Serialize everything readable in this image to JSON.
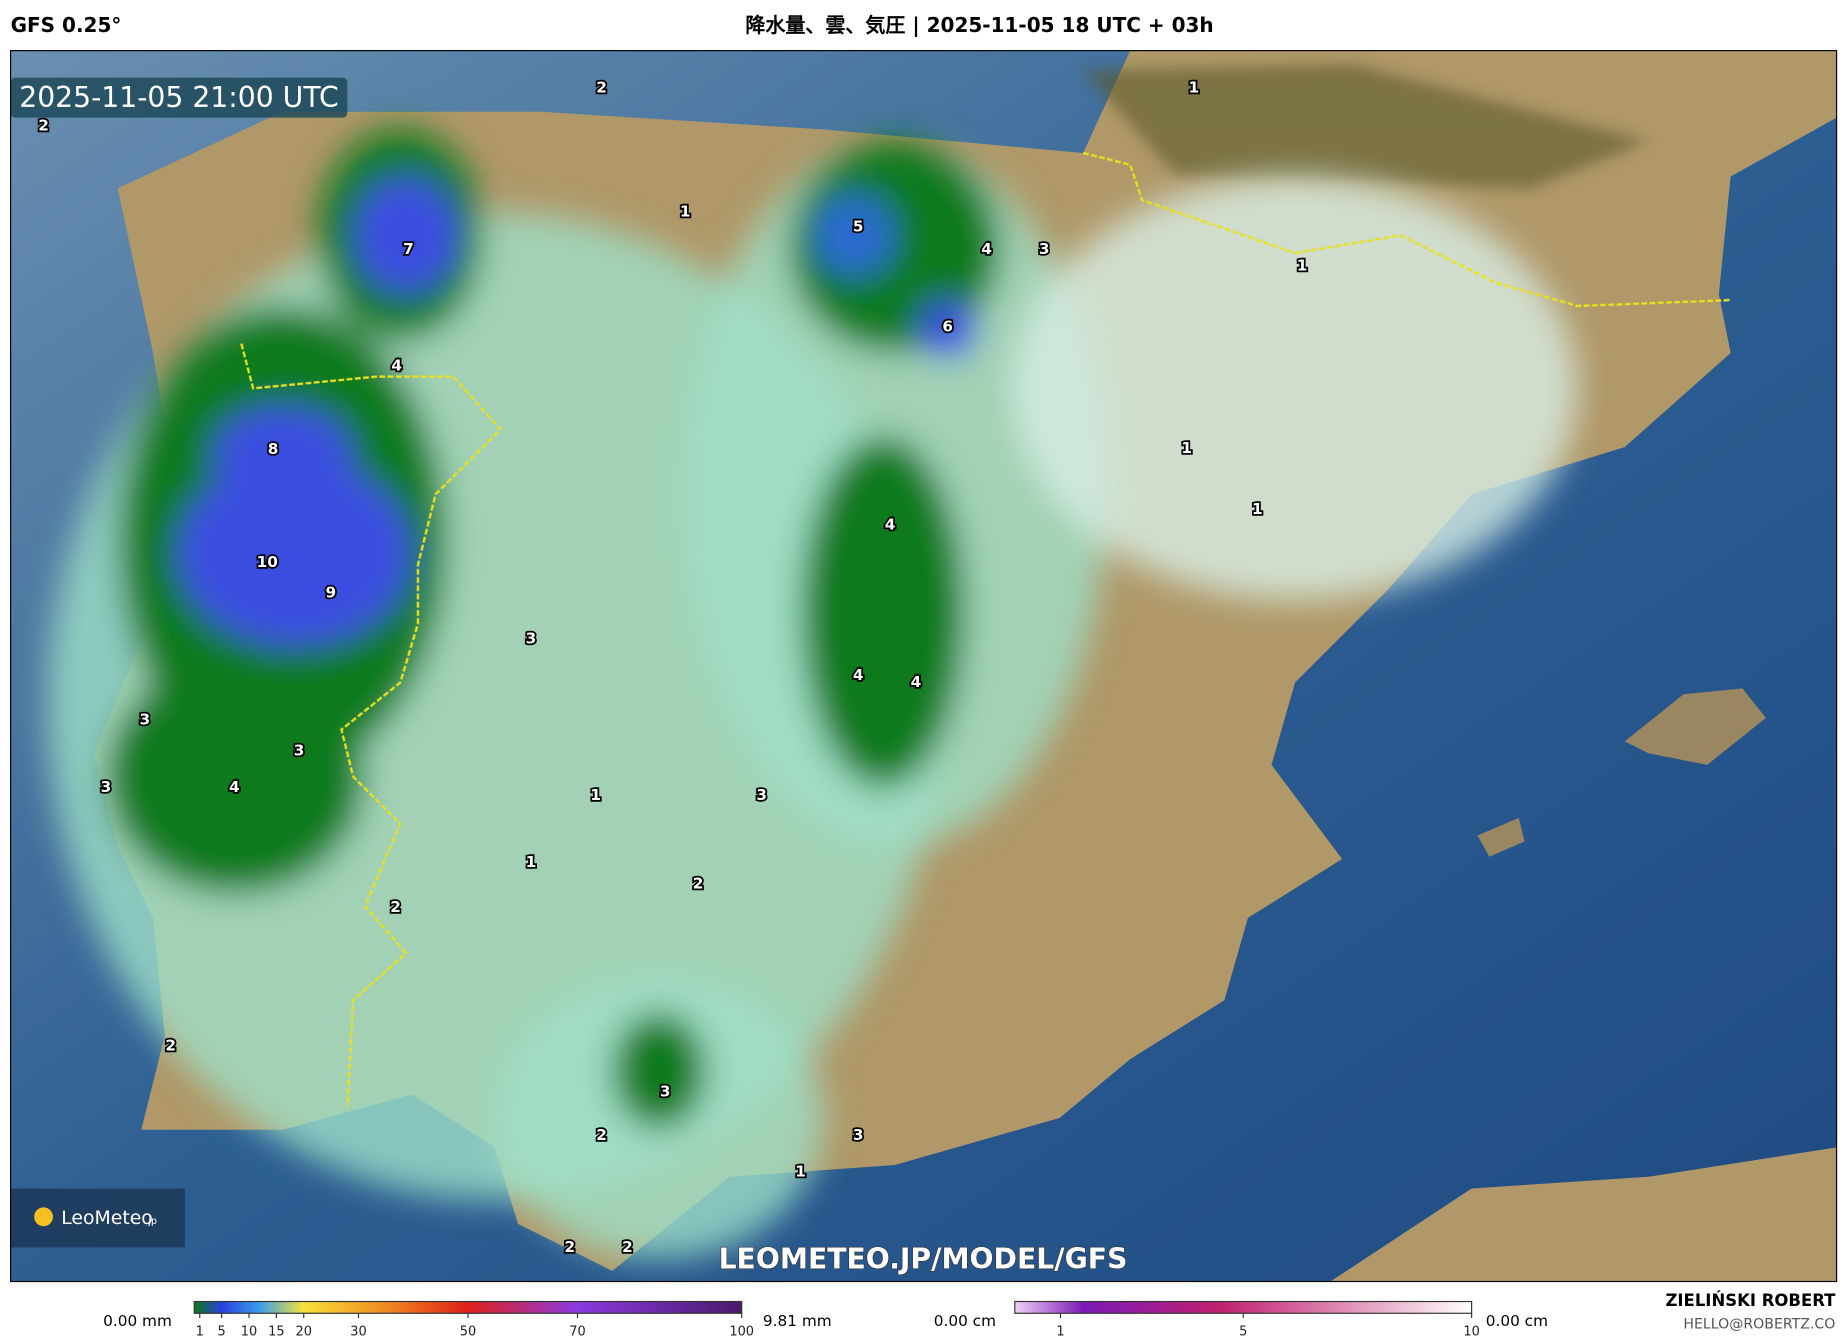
{
  "header": {
    "model": "GFS 0.25°",
    "title": "降水量、雲、気圧 | 2025-11-05 18 UTC + 03h"
  },
  "map": {
    "timestamp": "2025-11-05 21:00 UTC",
    "precip_labels": [
      2,
      2,
      1,
      7,
      1,
      5,
      4,
      3,
      6,
      4,
      1,
      8,
      1,
      1,
      4,
      10,
      9,
      3,
      4,
      4,
      3,
      3,
      3,
      4,
      1,
      3,
      1,
      2,
      2,
      2,
      3,
      3,
      2,
      1,
      2,
      2
    ],
    "watermark": "LEOMETEO.JP/MODEL/GFS",
    "logo": "LeoMeteo",
    "logo_suffix": "jp"
  },
  "legend": {
    "rain": {
      "min_label": "0.00 mm",
      "max_label": "9.81 mm",
      "lim": [
        0,
        100
      ],
      "ticks": [
        1,
        5,
        10,
        15,
        20,
        30,
        50,
        70,
        100
      ]
    },
    "snow": {
      "min_label": "0.00 cm",
      "max_label": "0.00 cm",
      "lim": [
        0,
        10
      ],
      "ticks": [
        1,
        5,
        10
      ]
    }
  },
  "credit": {
    "name": "ZIELIŃSKI ROBERT",
    "email": "HELLO@ROBERTZ.CO"
  }
}
